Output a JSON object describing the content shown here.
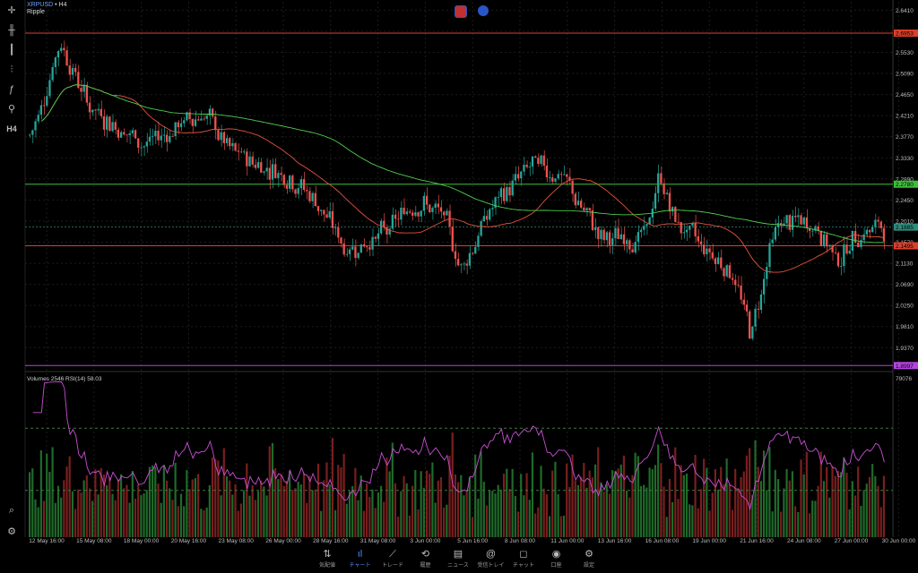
{
  "symbol": "XRPUSD",
  "timeframe_sep": " • ",
  "timeframe": "H4",
  "instrument": "Ripple",
  "left_toolbar": [
    {
      "name": "crosshair-icon",
      "glyph": "✛"
    },
    {
      "name": "candles-icon",
      "glyph": "╫"
    },
    {
      "name": "bars-icon",
      "glyph": "┃"
    },
    {
      "name": "indicators-icon",
      "glyph": "⫶"
    },
    {
      "name": "function-icon",
      "glyph": "ƒ"
    },
    {
      "name": "objects-icon",
      "glyph": "⚲"
    },
    {
      "name": "timeframe-button",
      "glyph": "H4"
    }
  ],
  "price_axis": [
    "2.6410",
    "2.5970",
    "2.5530",
    "2.5090",
    "2.4650",
    "2.4210",
    "2.3770",
    "2.3330",
    "2.2890",
    "2.2450",
    "2.2010",
    "2.1570",
    "2.1130",
    "2.0690",
    "2.0250",
    "1.9810",
    "1.9370"
  ],
  "price_min": 1.889,
  "price_max": 2.6585,
  "price_labels": [
    {
      "value": "2.6953",
      "color": "#d9402b",
      "price": 2.6953
    },
    {
      "value": "2.2780",
      "color": "#3cc13b",
      "price": 2.278
    },
    {
      "value": "2.1885",
      "color": "#2e8b7a",
      "price": 2.1885
    },
    {
      "value": "2.1495",
      "color": "#d9402b",
      "price": 2.1495
    },
    {
      "value": "1.8997",
      "color": "#b545e0",
      "price": 1.8997
    }
  ],
  "volume_header": "Volumes 2546 RSI(14) 58.03",
  "volume_axis_max": "79076",
  "time_axis": [
    "12 May 16:00",
    "15 May 08:00",
    "18 May 00:00",
    "20 May 16:00",
    "23 May 08:00",
    "26 May 00:00",
    "28 May 16:00",
    "31 May 08:00",
    "3 Jun 00:00",
    "5 Jun 16:00",
    "8 Jun 08:00",
    "11 Jun 00:00",
    "13 Jun 16:00",
    "16 Jun 08:00",
    "19 Jun 00:00",
    "21 Jun 16:00",
    "24 Jun 08:00",
    "27 Jun 00:00",
    "30 Jun 00:00"
  ],
  "colors": {
    "up": "#26a69a",
    "down": "#ef5350",
    "ma_fast": "#e6533c",
    "ma_slow": "#4fce4f",
    "rsi": "#c94fd6",
    "grid": "#1c1c1c",
    "accent": "#4f8ef7"
  },
  "nav": [
    {
      "label": "気配値",
      "glyph": "⇅",
      "active": false
    },
    {
      "label": "チャート",
      "glyph": "ıl",
      "active": true
    },
    {
      "label": "トレード",
      "glyph": "⟋",
      "active": false
    },
    {
      "label": "履歴",
      "glyph": "⟲",
      "active": false
    },
    {
      "label": "ニュース",
      "glyph": "▤",
      "active": false
    },
    {
      "label": "受信トレイ",
      "glyph": "@",
      "active": false
    },
    {
      "label": "チャット",
      "glyph": "◻",
      "active": false
    },
    {
      "label": "口座",
      "glyph": "◉",
      "active": false
    },
    {
      "label": "設定",
      "glyph": "⚙",
      "active": false
    }
  ]
}
